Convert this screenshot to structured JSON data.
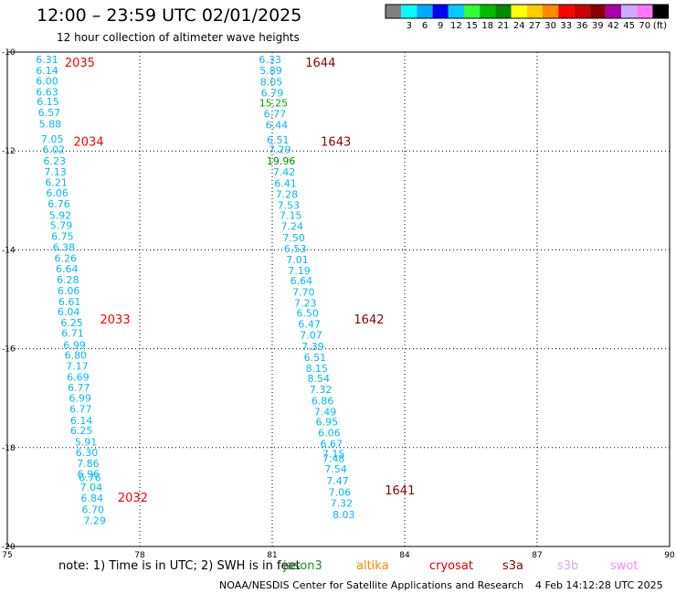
{
  "header": {
    "title": "12:00 – 23:59 UTC 02/01/2025",
    "subtitle": "12 hour collection of altimeter wave heights"
  },
  "legend": {
    "unit": "(ft)",
    "colors": [
      "#808080",
      "#00ffff",
      "#00aaff",
      "#0000ff",
      "#00ccff",
      "#33ff33",
      "#00bb00",
      "#008800",
      "#ffff00",
      "#ffcc00",
      "#ff8800",
      "#ff0000",
      "#cc0000",
      "#880000",
      "#aa00aa",
      "#ccaaff",
      "#ff77ff",
      "#000000"
    ],
    "labels": [
      "3",
      "6",
      "9",
      "12",
      "15",
      "18",
      "21",
      "24",
      "27",
      "30",
      "33",
      "36",
      "39",
      "42",
      "45",
      "70"
    ]
  },
  "axes": {
    "x_ticks": [
      "75",
      "78",
      "81",
      "84",
      "87",
      "90"
    ],
    "y_ticks": [
      "-10",
      "-12",
      "-14",
      "-16",
      "-18",
      "-20"
    ]
  },
  "satellite_legend": {
    "note": "note:  1) Time is in UTC; 2) SWH is in feet",
    "items": [
      {
        "name": "jason3",
        "color": "#228b22"
      },
      {
        "name": "altika",
        "color": "#ff8800"
      },
      {
        "name": "cryosat",
        "color": "#dd0000"
      },
      {
        "name": "s3a",
        "color": "#880000"
      },
      {
        "name": "s3b",
        "color": "#ccaaff"
      },
      {
        "name": "swot",
        "color": "#ff88ff"
      }
    ]
  },
  "footer": {
    "credit": "NOAA/NESDIS Center for Satellite Applications and Research",
    "timestamp": "4 Feb 14:12:28 UTC 2025"
  },
  "map_data": {
    "left_track": {
      "times": [
        {
          "label": "2035",
          "lon": 76.3,
          "lat": -10.2,
          "color": "#ff0000"
        },
        {
          "label": "2034",
          "lon": 76.5,
          "lat": -11.8,
          "color": "#ff0000"
        },
        {
          "label": "2033",
          "lon": 77.1,
          "lat": -15.4,
          "color": "#ff0000"
        },
        {
          "label": "2032",
          "lon": 77.5,
          "lat": -19.0,
          "color": "#ff0000"
        }
      ],
      "values": [
        {
          "v": "6.31",
          "lon": 75.9,
          "lat": -10.15,
          "color": "#00bbee"
        },
        {
          "v": "6.14",
          "lon": 75.9,
          "lat": -10.37,
          "color": "#00bbee"
        },
        {
          "v": "6.00",
          "lon": 75.9,
          "lat": -10.58,
          "color": "#00bbee"
        },
        {
          "v": "6.63",
          "lon": 75.9,
          "lat": -10.8,
          "color": "#00bbee"
        },
        {
          "v": "6.15",
          "lon": 75.92,
          "lat": -11.0,
          "color": "#00bbee"
        },
        {
          "v": "6.57",
          "lon": 75.95,
          "lat": -11.22,
          "color": "#00bbee"
        },
        {
          "v": "5.88",
          "lon": 75.97,
          "lat": -11.45,
          "color": "#00bbee"
        },
        {
          "v": "7.05",
          "lon": 76.02,
          "lat": -11.76,
          "color": "#00bbee"
        },
        {
          "v": "6.02",
          "lon": 76.05,
          "lat": -11.97,
          "color": "#00bbee"
        },
        {
          "v": "6.23",
          "lon": 76.07,
          "lat": -12.2,
          "color": "#00bbee"
        },
        {
          "v": "7.13",
          "lon": 76.09,
          "lat": -12.42,
          "color": "#00bbee"
        },
        {
          "v": "6.21",
          "lon": 76.11,
          "lat": -12.63,
          "color": "#00bbee"
        },
        {
          "v": "6.06",
          "lon": 76.13,
          "lat": -12.85,
          "color": "#00bbee"
        },
        {
          "v": "6.76",
          "lon": 76.17,
          "lat": -13.07,
          "color": "#00bbee"
        },
        {
          "v": "5.92",
          "lon": 76.2,
          "lat": -13.3,
          "color": "#00bbee"
        },
        {
          "v": "5.79",
          "lon": 76.22,
          "lat": -13.5,
          "color": "#00bbee"
        },
        {
          "v": "6.75",
          "lon": 76.25,
          "lat": -13.72,
          "color": "#00bbee"
        },
        {
          "v": "6.38",
          "lon": 76.28,
          "lat": -13.95,
          "color": "#00bbee"
        },
        {
          "v": "6.26",
          "lon": 76.32,
          "lat": -14.17,
          "color": "#00bbee"
        },
        {
          "v": "6.64",
          "lon": 76.35,
          "lat": -14.38,
          "color": "#00bbee"
        },
        {
          "v": "6.28",
          "lon": 76.37,
          "lat": -14.6,
          "color": "#00bbee"
        },
        {
          "v": "6.06",
          "lon": 76.39,
          "lat": -14.82,
          "color": "#00bbee"
        },
        {
          "v": "6.61",
          "lon": 76.41,
          "lat": -15.05,
          "color": "#00bbee"
        },
        {
          "v": "6.04",
          "lon": 76.39,
          "lat": -15.25,
          "color": "#00bbee"
        },
        {
          "v": "6.25",
          "lon": 76.46,
          "lat": -15.47,
          "color": "#00bbee"
        },
        {
          "v": "6.71",
          "lon": 76.48,
          "lat": -15.68,
          "color": "#00bbee"
        },
        {
          "v": "6.99",
          "lon": 76.52,
          "lat": -15.92,
          "color": "#00bbee"
        },
        {
          "v": "6.80",
          "lon": 76.55,
          "lat": -16.13,
          "color": "#00bbee"
        },
        {
          "v": "7.17",
          "lon": 76.58,
          "lat": -16.35,
          "color": "#00bbee"
        },
        {
          "v": "6.69",
          "lon": 76.6,
          "lat": -16.57,
          "color": "#00bbee"
        },
        {
          "v": "6.77",
          "lon": 76.62,
          "lat": -16.78,
          "color": "#00bbee"
        },
        {
          "v": "6.99",
          "lon": 76.65,
          "lat": -17.0,
          "color": "#00bbee"
        },
        {
          "v": "6.77",
          "lon": 76.66,
          "lat": -17.22,
          "color": "#00bbee"
        },
        {
          "v": "6.14",
          "lon": 76.68,
          "lat": -17.45,
          "color": "#00bbee"
        },
        {
          "v": "6.25",
          "lon": 76.68,
          "lat": -17.65,
          "color": "#00bbee"
        },
        {
          "v": "5.91",
          "lon": 76.78,
          "lat": -17.88,
          "color": "#00bbee"
        },
        {
          "v": "6.30",
          "lon": 76.8,
          "lat": -18.1,
          "color": "#00bbee"
        },
        {
          "v": "7.86",
          "lon": 76.83,
          "lat": -18.32,
          "color": "#00bbee"
        },
        {
          "v": "6.96",
          "lon": 76.84,
          "lat": -18.53,
          "color": "#00bbee"
        },
        {
          "v": "6.76",
          "lon": 76.87,
          "lat": -18.6,
          "color": "#00bbee"
        },
        {
          "v": "7.04",
          "lon": 76.9,
          "lat": -18.8,
          "color": "#00bbee"
        },
        {
          "v": "6.84",
          "lon": 76.92,
          "lat": -19.02,
          "color": "#00bbee"
        },
        {
          "v": "6.70",
          "lon": 76.94,
          "lat": -19.25,
          "color": "#00bbee"
        },
        {
          "v": "7.29",
          "lon": 76.98,
          "lat": -19.47,
          "color": "#00bbee"
        }
      ]
    },
    "right_track": {
      "times": [
        {
          "label": "1644",
          "lon": 81.75,
          "lat": -10.2,
          "color": "#880000"
        },
        {
          "label": "1643",
          "lon": 82.1,
          "lat": -11.8,
          "color": "#880000"
        },
        {
          "label": "1642",
          "lon": 82.85,
          "lat": -15.4,
          "color": "#880000"
        },
        {
          "label": "1641",
          "lon": 83.55,
          "lat": -18.85,
          "color": "#880000"
        }
      ],
      "values": [
        {
          "v": "6.33",
          "lon": 80.95,
          "lat": -10.15,
          "color": "#00bbee"
        },
        {
          "v": "5.89",
          "lon": 80.97,
          "lat": -10.37,
          "color": "#00bbee"
        },
        {
          "v": "8.05",
          "lon": 80.98,
          "lat": -10.6,
          "color": "#00bbee"
        },
        {
          "v": "6.79",
          "lon": 81.0,
          "lat": -10.82,
          "color": "#00bbee"
        },
        {
          "v": "15.25",
          "lon": 81.03,
          "lat": -11.03,
          "color": "#00aa00"
        },
        {
          "v": "6.77",
          "lon": 81.06,
          "lat": -11.25,
          "color": "#00bbee"
        },
        {
          "v": "6.44",
          "lon": 81.1,
          "lat": -11.47,
          "color": "#00bbee"
        },
        {
          "v": "6.51",
          "lon": 81.13,
          "lat": -11.77,
          "color": "#00bbee"
        },
        {
          "v": "7.29",
          "lon": 81.17,
          "lat": -11.97,
          "color": "#00bbee"
        },
        {
          "v": "19.96",
          "lon": 81.2,
          "lat": -12.2,
          "color": "#008800"
        },
        {
          "v": "7.42",
          "lon": 81.27,
          "lat": -12.42,
          "color": "#00bbee"
        },
        {
          "v": "6.41",
          "lon": 81.3,
          "lat": -12.65,
          "color": "#00bbee"
        },
        {
          "v": "7.28",
          "lon": 81.33,
          "lat": -12.87,
          "color": "#00bbee"
        },
        {
          "v": "7.53",
          "lon": 81.37,
          "lat": -13.1,
          "color": "#00bbee"
        },
        {
          "v": "7.15",
          "lon": 81.42,
          "lat": -13.3,
          "color": "#00bbee"
        },
        {
          "v": "7.24",
          "lon": 81.45,
          "lat": -13.52,
          "color": "#00bbee"
        },
        {
          "v": "7.50",
          "lon": 81.49,
          "lat": -13.75,
          "color": "#00bbee"
        },
        {
          "v": "6.53",
          "lon": 81.52,
          "lat": -13.97,
          "color": "#00bbee"
        },
        {
          "v": "7.01",
          "lon": 81.57,
          "lat": -14.2,
          "color": "#00bbee"
        },
        {
          "v": "7.19",
          "lon": 81.61,
          "lat": -14.42,
          "color": "#00bbee"
        },
        {
          "v": "6.64",
          "lon": 81.66,
          "lat": -14.62,
          "color": "#00bbee"
        },
        {
          "v": "7.70",
          "lon": 81.71,
          "lat": -14.85,
          "color": "#00bbee"
        },
        {
          "v": "7.23",
          "lon": 81.75,
          "lat": -15.07,
          "color": "#00bbee"
        },
        {
          "v": "6.50",
          "lon": 81.8,
          "lat": -15.28,
          "color": "#00bbee"
        },
        {
          "v": "6.47",
          "lon": 81.84,
          "lat": -15.5,
          "color": "#00bbee"
        },
        {
          "v": "7.07",
          "lon": 81.88,
          "lat": -15.72,
          "color": "#00bbee"
        },
        {
          "v": "7.39",
          "lon": 81.92,
          "lat": -15.95,
          "color": "#00bbee"
        },
        {
          "v": "6.51",
          "lon": 81.97,
          "lat": -16.17,
          "color": "#00bbee"
        },
        {
          "v": "8.15",
          "lon": 82.01,
          "lat": -16.4,
          "color": "#00bbee"
        },
        {
          "v": "8.54",
          "lon": 82.05,
          "lat": -16.6,
          "color": "#00bbee"
        },
        {
          "v": "7.32",
          "lon": 82.1,
          "lat": -16.82,
          "color": "#00bbee"
        },
        {
          "v": "6.86",
          "lon": 82.14,
          "lat": -17.05,
          "color": "#00bbee"
        },
        {
          "v": "7.49",
          "lon": 82.2,
          "lat": -17.27,
          "color": "#00bbee"
        },
        {
          "v": "6.95",
          "lon": 82.24,
          "lat": -17.48,
          "color": "#00bbee"
        },
        {
          "v": "6.06",
          "lon": 82.29,
          "lat": -17.7,
          "color": "#00bbee"
        },
        {
          "v": "6.67",
          "lon": 82.34,
          "lat": -17.92,
          "color": "#00bbee"
        },
        {
          "v": "7.15",
          "lon": 82.39,
          "lat": -18.12,
          "color": "#00bbee"
        },
        {
          "v": "7.48",
          "lon": 82.39,
          "lat": -18.22,
          "color": "#00bbee"
        },
        {
          "v": "7.54",
          "lon": 82.44,
          "lat": -18.43,
          "color": "#00bbee"
        },
        {
          "v": "7.47",
          "lon": 82.48,
          "lat": -18.67,
          "color": "#00bbee"
        },
        {
          "v": "7.06",
          "lon": 82.53,
          "lat": -18.9,
          "color": "#00bbee"
        },
        {
          "v": "7.32",
          "lon": 82.57,
          "lat": -19.12,
          "color": "#00bbee"
        },
        {
          "v": "8.03",
          "lon": 82.62,
          "lat": -19.35,
          "color": "#00bbee"
        }
      ]
    }
  }
}
